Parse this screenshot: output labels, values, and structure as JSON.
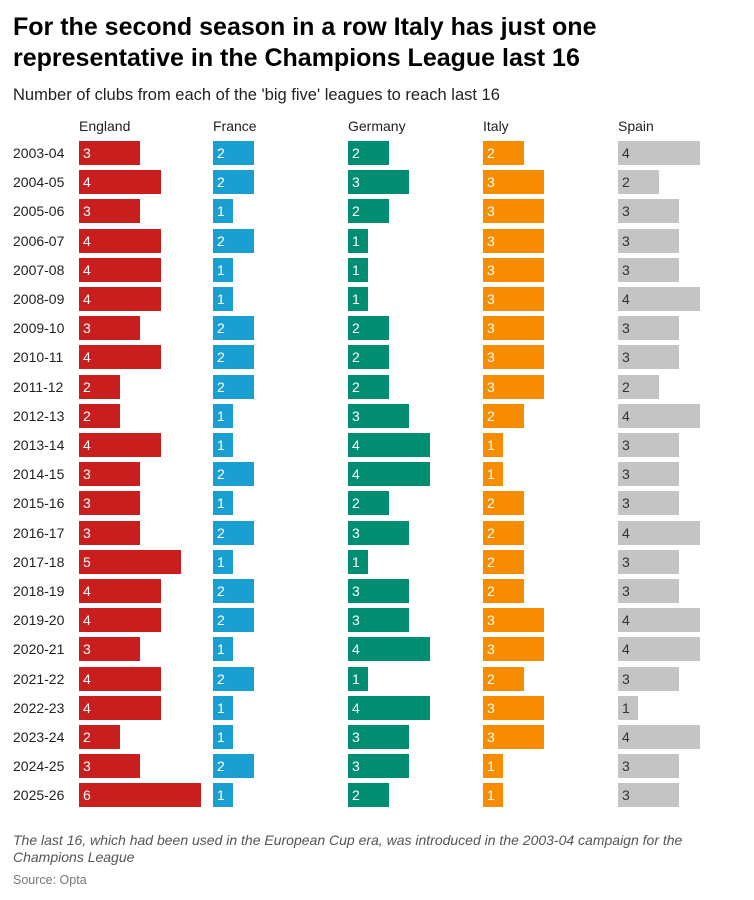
{
  "title": "For the second season in a row Italy has just one representative in the Champions League last 16",
  "subtitle": "Number of clubs from each of the 'big five' leagues to reach last 16",
  "note": "The last 16, which had been used in the European Cup era, was introduced in the 2003-04 campaign for the Champions League",
  "source": "Source: Opta",
  "chart_data": {
    "type": "bar",
    "orientation": "horizontal",
    "layout": "small-multiples",
    "title": "For the second season in a row Italy has just one representative in the Champions League last 16",
    "subtitle": "Number of clubs from each of the 'big five' leagues to reach last 16",
    "categories": [
      "2003-04",
      "2004-05",
      "2005-06",
      "2006-07",
      "2007-08",
      "2008-09",
      "2009-10",
      "2010-11",
      "2011-12",
      "2012-13",
      "2013-14",
      "2014-15",
      "2015-16",
      "2016-17",
      "2017-18",
      "2018-19",
      "2019-20",
      "2020-21",
      "2021-22",
      "2022-23",
      "2023-24",
      "2024-25",
      "2025-26"
    ],
    "series": [
      {
        "name": "England",
        "color": "#c81e1e",
        "label_color": "#ffffff",
        "values": [
          3,
          4,
          3,
          4,
          4,
          4,
          3,
          4,
          2,
          2,
          4,
          3,
          3,
          3,
          5,
          4,
          4,
          3,
          4,
          4,
          2,
          3,
          6
        ]
      },
      {
        "name": "France",
        "color": "#1a9fd2",
        "label_color": "#ffffff",
        "values": [
          2,
          2,
          1,
          2,
          1,
          1,
          2,
          2,
          2,
          1,
          1,
          2,
          1,
          2,
          1,
          2,
          2,
          1,
          2,
          1,
          1,
          2,
          1
        ]
      },
      {
        "name": "Germany",
        "color": "#008d72",
        "label_color": "#ffffff",
        "values": [
          2,
          3,
          2,
          1,
          1,
          1,
          2,
          2,
          2,
          3,
          4,
          4,
          2,
          3,
          1,
          3,
          3,
          4,
          1,
          4,
          3,
          3,
          2
        ]
      },
      {
        "name": "Italy",
        "color": "#f88c00",
        "label_color": "#ffffff",
        "values": [
          2,
          3,
          3,
          3,
          3,
          3,
          3,
          3,
          3,
          2,
          1,
          1,
          2,
          2,
          2,
          2,
          3,
          3,
          2,
          3,
          3,
          1,
          1
        ]
      },
      {
        "name": "Spain",
        "color": "#c4c4c4",
        "label_color": "#333333",
        "values": [
          4,
          2,
          3,
          3,
          3,
          4,
          3,
          3,
          2,
          4,
          3,
          3,
          3,
          4,
          3,
          3,
          4,
          4,
          3,
          1,
          4,
          3,
          3
        ]
      }
    ],
    "data_labels": true,
    "grid": false
  }
}
